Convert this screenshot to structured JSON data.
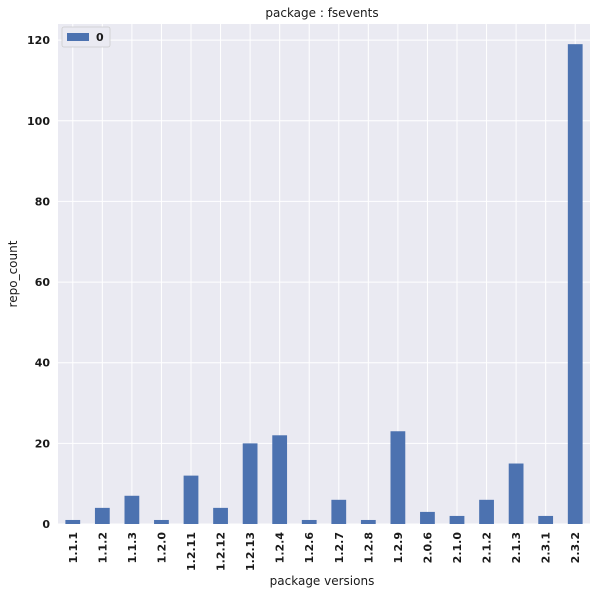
{
  "chart_data": {
    "type": "bar",
    "title": "package : fsevents",
    "xlabel": "package versions",
    "ylabel": "repo_count",
    "categories": [
      "1.1.1",
      "1.1.2",
      "1.1.3",
      "1.2.0",
      "1.2.11",
      "1.2.12",
      "1.2.13",
      "1.2.4",
      "1.2.6",
      "1.2.7",
      "1.2.8",
      "1.2.9",
      "2.0.6",
      "2.1.0",
      "2.1.2",
      "2.1.3",
      "2.3.1",
      "2.3.2"
    ],
    "series": [
      {
        "name": "0",
        "values": [
          1,
          4,
          7,
          1,
          12,
          4,
          20,
          22,
          1,
          6,
          1,
          23,
          3,
          2,
          6,
          15,
          2,
          119
        ]
      }
    ],
    "ylim": [
      0,
      124
    ],
    "yticks": [
      0,
      20,
      40,
      60,
      80,
      100,
      120
    ],
    "grid": true,
    "legend": "top-left",
    "colors": {
      "bar": "#4c72b0",
      "background": "#eaeaf2",
      "grid": "#ffffff"
    }
  }
}
